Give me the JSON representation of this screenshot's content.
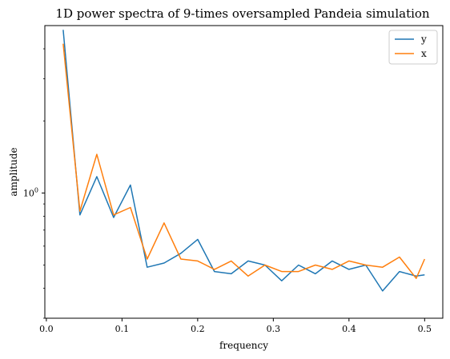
{
  "chart_data": {
    "type": "line",
    "title": "1D power spectra of 9-times oversampled Pandeia simulation",
    "xlabel": "frequency",
    "ylabel": "amplitude",
    "xlim": [
      -0.002,
      0.524
    ],
    "ylim": [
      0.3,
      5.0
    ],
    "yscale": "log",
    "grid": false,
    "legend_position": "top-right",
    "x_ticks": [
      {
        "value": 0.0,
        "label": "0.0"
      },
      {
        "value": 0.1,
        "label": "0.1"
      },
      {
        "value": 0.2,
        "label": "0.2"
      },
      {
        "value": 0.3,
        "label": "0.3"
      },
      {
        "value": 0.4,
        "label": "0.4"
      },
      {
        "value": 0.5,
        "label": "0.5"
      }
    ],
    "y_ticks": [
      {
        "value": 1.0,
        "label": "10",
        "exponent": "0"
      }
    ],
    "y_minor_ticks": [
      0.3,
      0.4,
      0.5,
      0.6,
      0.7,
      0.8,
      0.9,
      2,
      3,
      4
    ],
    "x": [
      0.0222,
      0.0444,
      0.0667,
      0.0889,
      0.1111,
      0.1333,
      0.1556,
      0.1778,
      0.2,
      0.2222,
      0.2444,
      0.2667,
      0.2889,
      0.3111,
      0.3333,
      0.3556,
      0.3778,
      0.4,
      0.4222,
      0.4444,
      0.4667,
      0.4889,
      0.5
    ],
    "series": [
      {
        "name": "y",
        "color": "#1f77b4",
        "values": [
          4.8,
          0.81,
          1.17,
          0.79,
          1.08,
          0.49,
          0.51,
          0.56,
          0.64,
          0.47,
          0.46,
          0.52,
          0.5,
          0.43,
          0.5,
          0.46,
          0.52,
          0.48,
          0.5,
          0.39,
          0.47,
          0.45,
          0.455
        ]
      },
      {
        "name": "x",
        "color": "#ff7f0e",
        "values": [
          4.2,
          0.84,
          1.45,
          0.81,
          0.87,
          0.53,
          0.75,
          0.53,
          0.52,
          0.48,
          0.52,
          0.45,
          0.5,
          0.47,
          0.47,
          0.5,
          0.48,
          0.52,
          0.5,
          0.49,
          0.54,
          0.44,
          0.53
        ]
      }
    ]
  }
}
